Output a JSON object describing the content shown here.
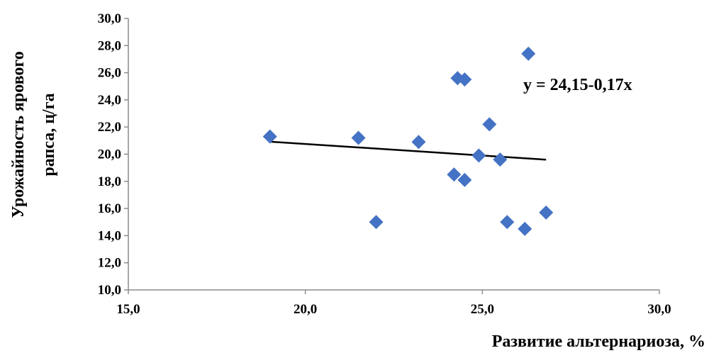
{
  "chart_data": {
    "type": "scatter",
    "title": "",
    "xlabel": "Развитие альтернариоза, %",
    "ylabel_lines": [
      "Урожайность ярового",
      "рапса, ц/га"
    ],
    "xlim": [
      15,
      30
    ],
    "ylim": [
      10,
      30
    ],
    "x_ticks": [
      "15,0",
      "20,0",
      "25,0",
      "30,0"
    ],
    "y_ticks": [
      "10,0",
      "12,0",
      "14,0",
      "16,0",
      "18,0",
      "20,0",
      "22,0",
      "24,0",
      "26,0",
      "28,0",
      "30,0"
    ],
    "grid": false,
    "marker_color": "#4472c4",
    "trendline_color": "#000000",
    "points": [
      {
        "x": 19.0,
        "y": 21.3
      },
      {
        "x": 21.5,
        "y": 21.2
      },
      {
        "x": 22.0,
        "y": 15.0
      },
      {
        "x": 23.2,
        "y": 20.9
      },
      {
        "x": 24.2,
        "y": 18.5
      },
      {
        "x": 24.3,
        "y": 25.6
      },
      {
        "x": 24.5,
        "y": 25.5
      },
      {
        "x": 24.5,
        "y": 18.1
      },
      {
        "x": 24.9,
        "y": 19.9
      },
      {
        "x": 25.2,
        "y": 22.2
      },
      {
        "x": 25.5,
        "y": 19.6
      },
      {
        "x": 25.7,
        "y": 15.0
      },
      {
        "x": 26.2,
        "y": 14.5
      },
      {
        "x": 26.3,
        "y": 27.4
      },
      {
        "x": 26.8,
        "y": 15.7
      }
    ],
    "trendline": {
      "equation": "y = 24,15-0,17x",
      "x": [
        19.0,
        26.8
      ]
    }
  }
}
